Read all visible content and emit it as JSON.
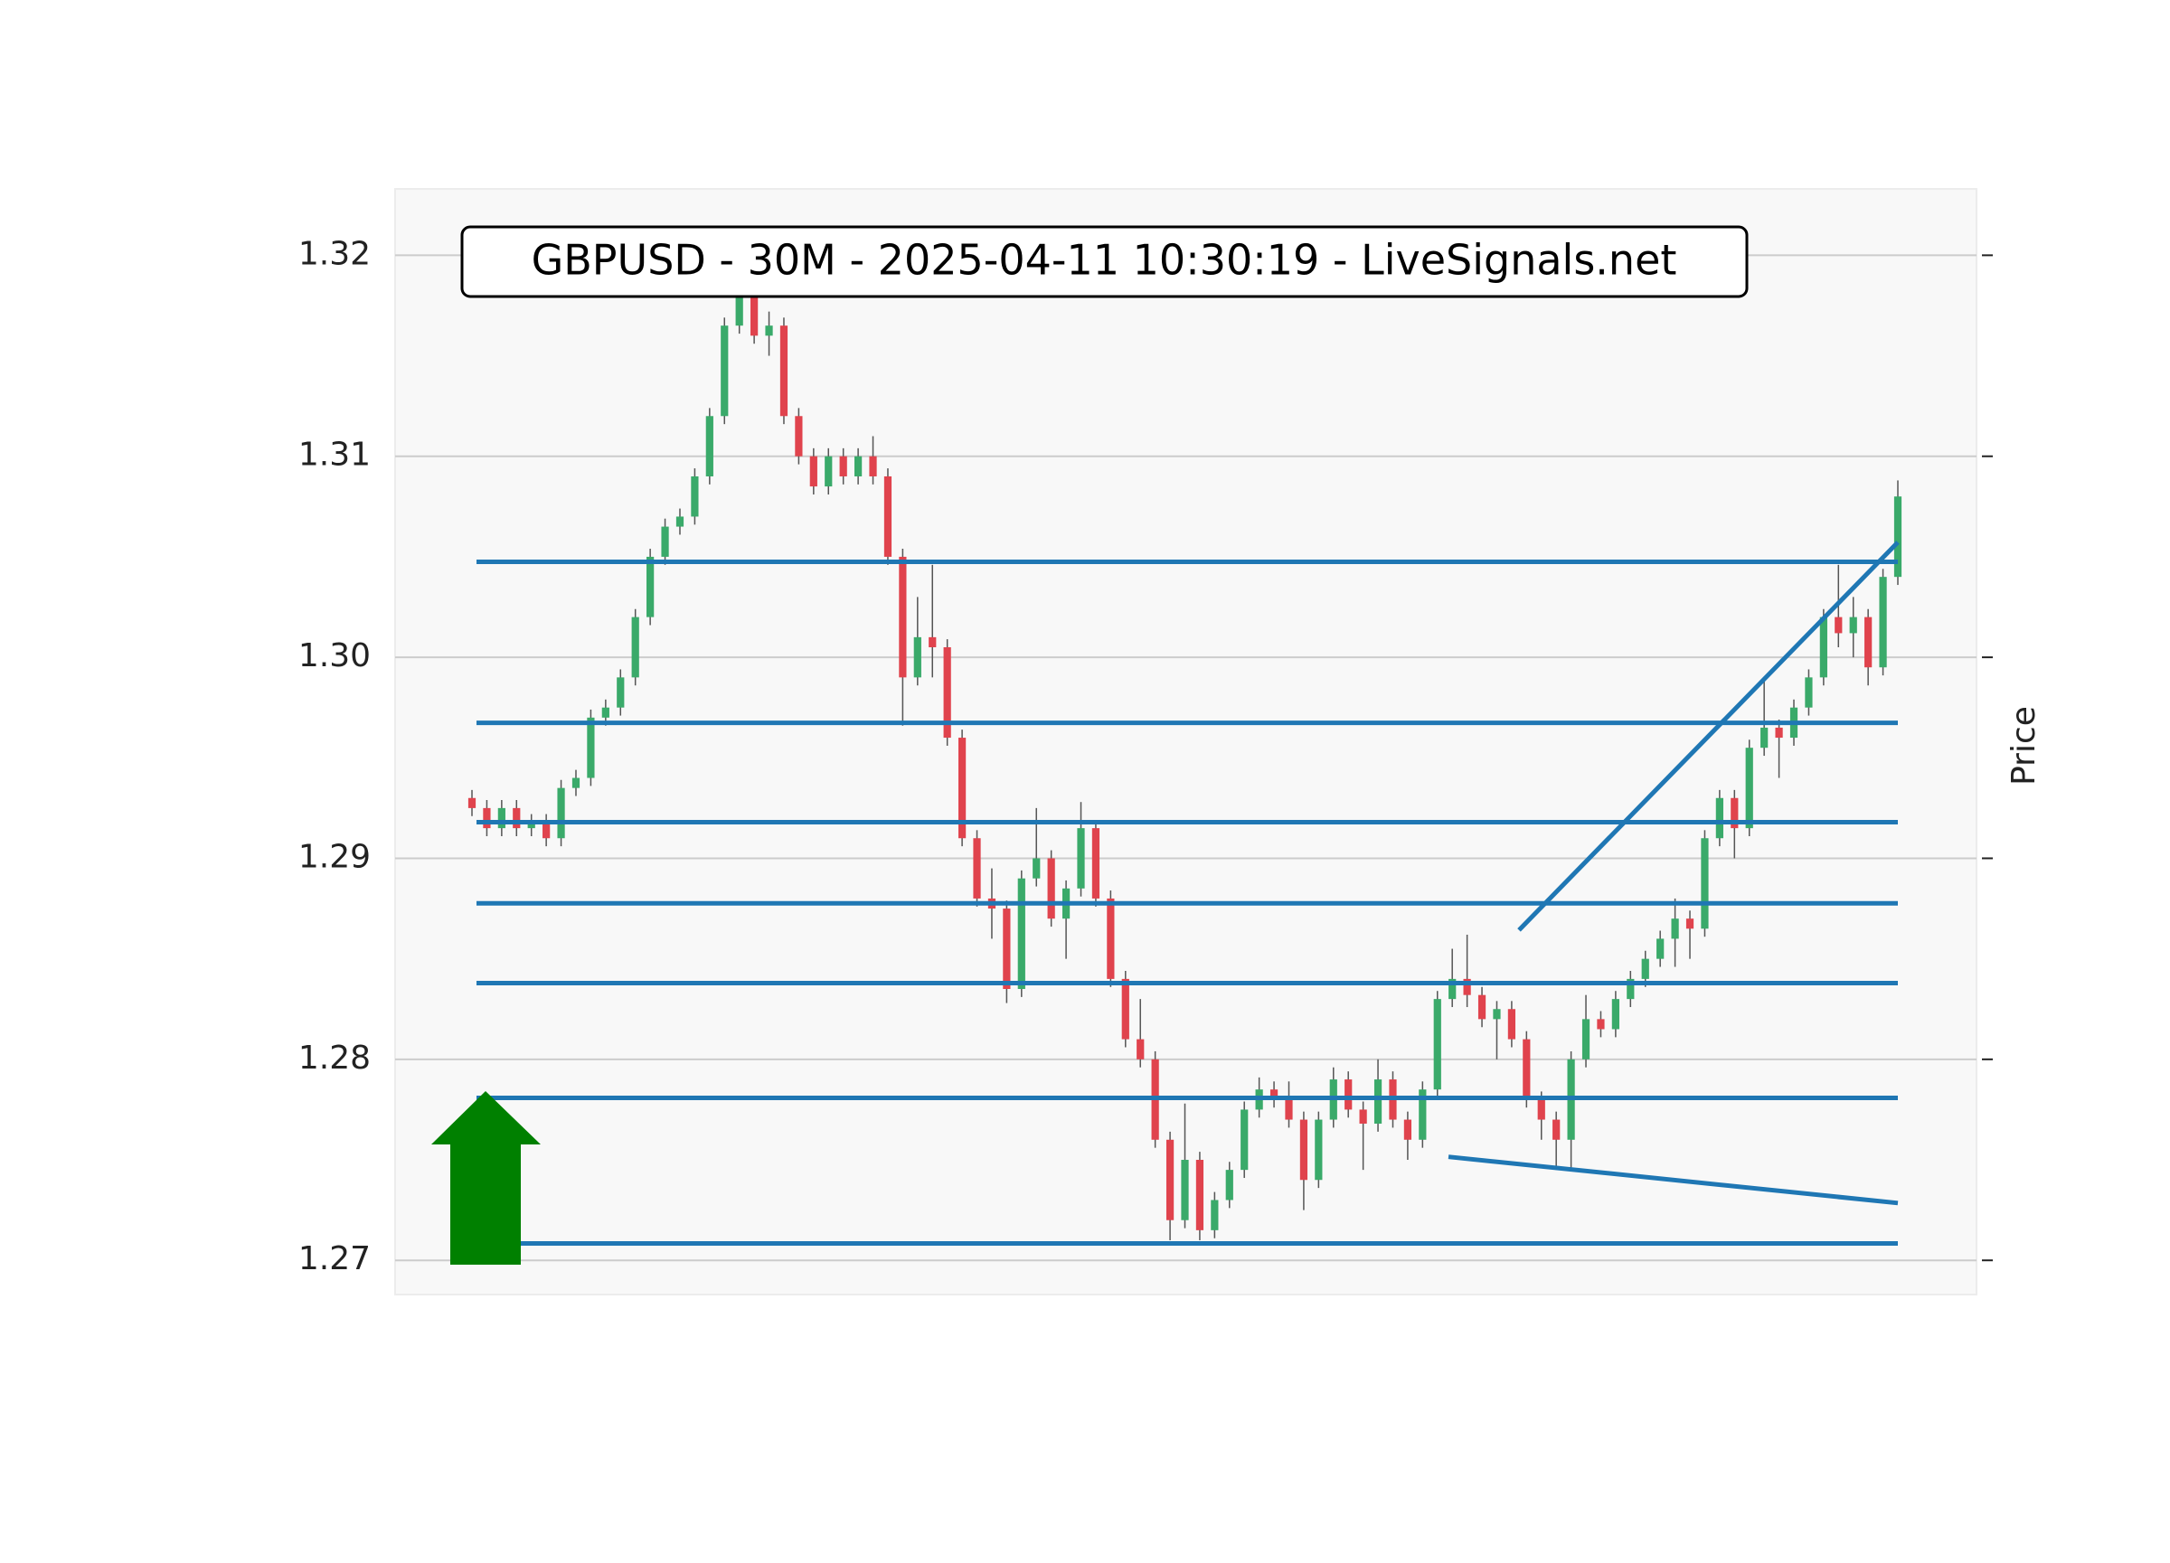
{
  "chart_data": {
    "type": "candlestick",
    "title": "GBPUSD - 30M - 2025-04-11 10:30:19 - LiveSignals.net",
    "y_label": "Price",
    "ylim": [
      1.2683,
      1.3233
    ],
    "yticks": [
      1.27,
      1.28,
      1.29,
      {
        "value": 1.3,
        "label": "1.30"
      },
      1.31,
      1.32
    ],
    "grid": true,
    "up_color": "#3aaa6a",
    "down_color": "#e0434d",
    "line_color": "#1f77b4",
    "ohlc": [
      [
        1.293,
        1.2934,
        1.2921,
        1.2925
      ],
      [
        1.2925,
        1.2929,
        1.2911,
        1.2915
      ],
      [
        1.2915,
        1.2929,
        1.2911,
        1.2925
      ],
      [
        1.2925,
        1.2929,
        1.2911,
        1.2915
      ],
      [
        1.2915,
        1.2922,
        1.2911,
        1.2918
      ],
      [
        1.2918,
        1.2922,
        1.2906,
        1.291
      ],
      [
        1.291,
        1.2939,
        1.2906,
        1.2935
      ],
      [
        1.2935,
        1.2944,
        1.2931,
        1.294
      ],
      [
        1.294,
        1.2974,
        1.2936,
        1.297
      ],
      [
        1.297,
        1.2979,
        1.2966,
        1.2975
      ],
      [
        1.2975,
        1.2994,
        1.2971,
        1.299
      ],
      [
        1.299,
        1.3024,
        1.2986,
        1.302
      ],
      [
        1.302,
        1.3054,
        1.3016,
        1.305
      ],
      [
        1.305,
        1.3069,
        1.3046,
        1.3065
      ],
      [
        1.3065,
        1.3074,
        1.3061,
        1.307
      ],
      [
        1.307,
        1.3094,
        1.3066,
        1.309
      ],
      [
        1.309,
        1.3124,
        1.3086,
        1.312
      ],
      [
        1.312,
        1.3169,
        1.3116,
        1.3165
      ],
      [
        1.3165,
        1.3184,
        1.3161,
        1.318
      ],
      [
        1.318,
        1.3184,
        1.3156,
        1.316
      ],
      [
        1.316,
        1.3172,
        1.315,
        1.3165
      ],
      [
        1.3165,
        1.3169,
        1.3116,
        1.312
      ],
      [
        1.312,
        1.3124,
        1.3096,
        1.31
      ],
      [
        1.31,
        1.3104,
        1.3081,
        1.3085
      ],
      [
        1.3085,
        1.3104,
        1.3081,
        1.31
      ],
      [
        1.31,
        1.3104,
        1.3086,
        1.309
      ],
      [
        1.309,
        1.3104,
        1.3086,
        1.31
      ],
      [
        1.31,
        1.311,
        1.3086,
        1.309
      ],
      [
        1.309,
        1.3094,
        1.3046,
        1.305
      ],
      [
        1.305,
        1.3054,
        1.2966,
        1.299
      ],
      [
        1.299,
        1.303,
        1.2986,
        1.301
      ],
      [
        1.301,
        1.3046,
        1.299,
        1.3005
      ],
      [
        1.3005,
        1.3009,
        1.2956,
        1.296
      ],
      [
        1.296,
        1.2964,
        1.2906,
        1.291
      ],
      [
        1.291,
        1.2914,
        1.2876,
        1.288
      ],
      [
        1.288,
        1.2895,
        1.286,
        1.2875
      ],
      [
        1.2875,
        1.2879,
        1.2828,
        1.2835
      ],
      [
        1.2835,
        1.2894,
        1.2831,
        1.289
      ],
      [
        1.289,
        1.2925,
        1.2886,
        1.29
      ],
      [
        1.29,
        1.2904,
        1.2866,
        1.287
      ],
      [
        1.287,
        1.2889,
        1.285,
        1.2885
      ],
      [
        1.2885,
        1.2928,
        1.2881,
        1.2915
      ],
      [
        1.2915,
        1.2919,
        1.2876,
        1.288
      ],
      [
        1.288,
        1.2884,
        1.2836,
        1.284
      ],
      [
        1.284,
        1.2844,
        1.2806,
        1.281
      ],
      [
        1.281,
        1.283,
        1.2796,
        1.28
      ],
      [
        1.28,
        1.2804,
        1.2756,
        1.276
      ],
      [
        1.276,
        1.2764,
        1.271,
        1.272
      ],
      [
        1.272,
        1.2778,
        1.2716,
        1.275
      ],
      [
        1.275,
        1.2754,
        1.271,
        1.2715
      ],
      [
        1.2715,
        1.2734,
        1.2711,
        1.273
      ],
      [
        1.273,
        1.2749,
        1.2726,
        1.2745
      ],
      [
        1.2745,
        1.2779,
        1.2741,
        1.2775
      ],
      [
        1.2775,
        1.2791,
        1.2771,
        1.2785
      ],
      [
        1.2785,
        1.2789,
        1.2776,
        1.278
      ],
      [
        1.278,
        1.2789,
        1.2766,
        1.277
      ],
      [
        1.277,
        1.2774,
        1.2725,
        1.274
      ],
      [
        1.274,
        1.2774,
        1.2736,
        1.277
      ],
      [
        1.277,
        1.2796,
        1.2766,
        1.279
      ],
      [
        1.279,
        1.2794,
        1.2771,
        1.2775
      ],
      [
        1.2775,
        1.2779,
        1.2745,
        1.2768
      ],
      [
        1.2768,
        1.28,
        1.2764,
        1.279
      ],
      [
        1.279,
        1.2794,
        1.2766,
        1.277
      ],
      [
        1.277,
        1.2774,
        1.275,
        1.276
      ],
      [
        1.276,
        1.2789,
        1.2756,
        1.2785
      ],
      [
        1.2785,
        1.2834,
        1.2781,
        1.283
      ],
      [
        1.283,
        1.2855,
        1.2826,
        1.284
      ],
      [
        1.284,
        1.2862,
        1.2826,
        1.2832
      ],
      [
        1.2832,
        1.2836,
        1.2816,
        1.282
      ],
      [
        1.282,
        1.2829,
        1.28,
        1.2825
      ],
      [
        1.2825,
        1.2829,
        1.2806,
        1.281
      ],
      [
        1.281,
        1.2814,
        1.2776,
        1.278
      ],
      [
        1.278,
        1.2784,
        1.276,
        1.277
      ],
      [
        1.277,
        1.2774,
        1.2745,
        1.276
      ],
      [
        1.276,
        1.2804,
        1.2745,
        1.28
      ],
      [
        1.28,
        1.2832,
        1.2796,
        1.282
      ],
      [
        1.282,
        1.2824,
        1.2811,
        1.2815
      ],
      [
        1.2815,
        1.2834,
        1.2811,
        1.283
      ],
      [
        1.283,
        1.2844,
        1.2826,
        1.284
      ],
      [
        1.284,
        1.2854,
        1.2836,
        1.285
      ],
      [
        1.285,
        1.2864,
        1.2846,
        1.286
      ],
      [
        1.286,
        1.288,
        1.2846,
        1.287
      ],
      [
        1.287,
        1.2874,
        1.285,
        1.2865
      ],
      [
        1.2865,
        1.2914,
        1.2861,
        1.291
      ],
      [
        1.291,
        1.2934,
        1.2906,
        1.293
      ],
      [
        1.293,
        1.2934,
        1.29,
        1.2915
      ],
      [
        1.2915,
        1.2959,
        1.2911,
        1.2955
      ],
      [
        1.2955,
        1.299,
        1.2951,
        1.2965
      ],
      [
        1.2965,
        1.2969,
        1.294,
        1.296
      ],
      [
        1.296,
        1.2979,
        1.2956,
        1.2975
      ],
      [
        1.2975,
        1.2994,
        1.2971,
        1.299
      ],
      [
        1.299,
        1.3024,
        1.2986,
        1.302
      ],
      [
        1.302,
        1.3046,
        1.3005,
        1.3012
      ],
      [
        1.3012,
        1.303,
        1.3,
        1.302
      ],
      [
        1.302,
        1.3024,
        1.2986,
        1.2995
      ],
      [
        1.2995,
        1.3044,
        1.2991,
        1.304
      ],
      [
        1.304,
        1.3088,
        1.3036,
        1.308
      ]
    ],
    "levels": [
      1.30475,
      1.29674,
      1.2918,
      1.28776,
      1.28379,
      1.27808,
      1.27084
    ],
    "trendlines": [
      {
        "values": [
          1.28643,
          1.30572
        ]
      },
      {
        "values": [
          1.27515,
          1.27285
        ]
      }
    ]
  }
}
